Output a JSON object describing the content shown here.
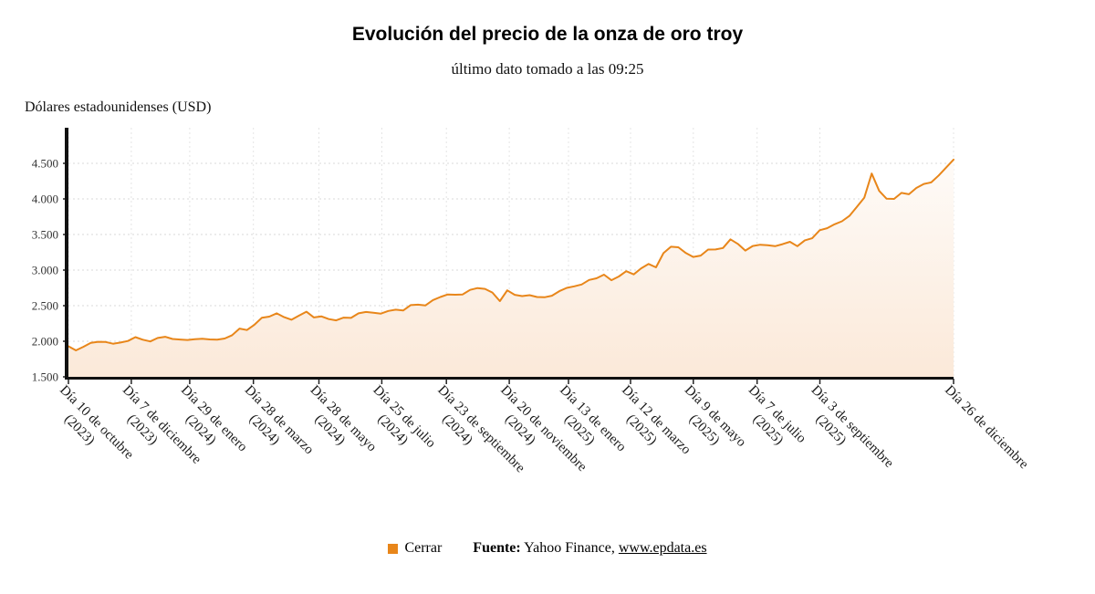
{
  "chart_data": {
    "type": "line",
    "title": "Evolución del precio de la onza de oro troy",
    "subtitle": "último dato tomado a las 09:25",
    "ylabel": "Dólares estadounidenses (USD)",
    "ylim": [
      1500,
      4500
    ],
    "grid": true,
    "legend_position": "bottom",
    "line_color": "#e8861a",
    "area_fill_top": "#fefbf8",
    "area_fill_bottom": "#fbe9d9",
    "yticks": [
      {
        "label": "1.500",
        "value": 1500
      },
      {
        "label": "2.000",
        "value": 2000
      },
      {
        "label": "2.500",
        "value": 2500
      },
      {
        "label": "3.000",
        "value": 3000
      },
      {
        "label": "3.500",
        "value": 3500
      },
      {
        "label": "4.000",
        "value": 4000
      },
      {
        "label": "4.500",
        "value": 4500
      }
    ],
    "xticks": [
      {
        "label": "Día 10 de octubre",
        "year": "(2023)",
        "pos": 0
      },
      {
        "label": "Día 7 de diciembre",
        "year": "(2023)",
        "pos": 0.071
      },
      {
        "label": "Día 29 de enero",
        "year": "(2024)",
        "pos": 0.137
      },
      {
        "label": "Día 28 de marzo",
        "year": "(2024)",
        "pos": 0.209
      },
      {
        "label": "Día 28 de mayo",
        "year": "(2024)",
        "pos": 0.283
      },
      {
        "label": "Día 25 de julio",
        "year": "(2024)",
        "pos": 0.354
      },
      {
        "label": "Día 23 de septiembre",
        "year": "(2024)",
        "pos": 0.427
      },
      {
        "label": "Día 20 de noviembre",
        "year": "(2024)",
        "pos": 0.498
      },
      {
        "label": "Día 13 de enero",
        "year": "(2025)",
        "pos": 0.565
      },
      {
        "label": "Día 12 de marzo",
        "year": "(2025)",
        "pos": 0.635
      },
      {
        "label": "Día 9 de mayo",
        "year": "(2025)",
        "pos": 0.706
      },
      {
        "label": "Día 7 de julio",
        "year": "(2025)",
        "pos": 0.778
      },
      {
        "label": "Día 3 de septiembre",
        "year": "(2025)",
        "pos": 0.849
      },
      {
        "label": "Día 26 de diciembre",
        "year": "",
        "pos": 1
      }
    ],
    "series": [
      {
        "name": "Cerrar",
        "color": "#e8861a",
        "values": [
          1930,
          1872,
          1922,
          1978,
          1992,
          1990,
          1966,
          1982,
          2004,
          2058,
          2022,
          1998,
          2046,
          2063,
          2032,
          2024,
          2018,
          2030,
          2036,
          2026,
          2022,
          2038,
          2085,
          2178,
          2158,
          2232,
          2330,
          2346,
          2392,
          2338,
          2302,
          2360,
          2415,
          2334,
          2350,
          2312,
          2294,
          2332,
          2328,
          2392,
          2412,
          2400,
          2388,
          2426,
          2444,
          2432,
          2508,
          2514,
          2504,
          2578,
          2622,
          2658,
          2654,
          2658,
          2722,
          2748,
          2736,
          2685,
          2564,
          2716,
          2652,
          2634,
          2648,
          2622,
          2618,
          2640,
          2704,
          2750,
          2772,
          2798,
          2862,
          2884,
          2936,
          2858,
          2910,
          2984,
          2940,
          3024,
          3086,
          3038,
          3238,
          3328,
          3320,
          3240,
          3184,
          3204,
          3288,
          3290,
          3310,
          3432,
          3368,
          3274,
          3338,
          3356,
          3350,
          3336,
          3364,
          3398,
          3336,
          3418,
          3448,
          3560,
          3588,
          3644,
          3686,
          3762,
          3888,
          4018,
          4356,
          4113,
          4003,
          4000,
          4084,
          4066,
          4154,
          4210,
          4232,
          4330,
          4440,
          4552
        ]
      }
    ]
  },
  "footer": {
    "source_label": "Fuente:",
    "source_text": " Yahoo Finance, ",
    "link": "www.epdata.es"
  }
}
